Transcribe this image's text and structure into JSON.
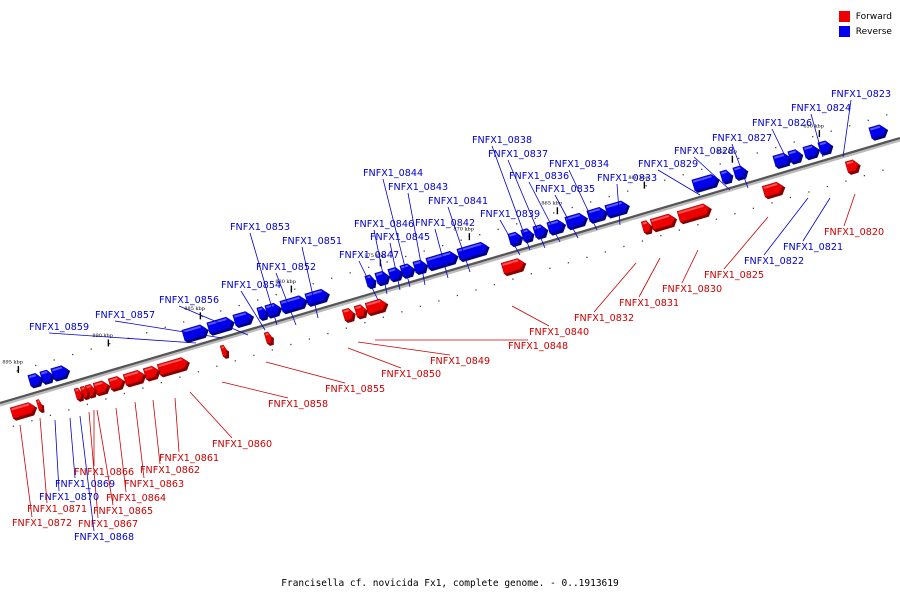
{
  "legend": [
    {
      "label": "Forward",
      "color": "#ee0000"
    },
    {
      "label": "Reverse",
      "color": "#0000ee"
    }
  ],
  "caption": "Francisella cf. novicida Fx1, complete genome. - 0..1913619",
  "colors": {
    "forward": "#ee0000",
    "reverse": "#0000ee",
    "forward_label": "#cc0000",
    "reverse_label": "#0000cc"
  },
  "axis_ticks": [
    "850 kbp",
    "855 kbp",
    "860 kbp",
    "865 kbp",
    "870 kbp",
    "875 kbp",
    "880 kbp",
    "885 kbp",
    "890 kbp",
    "895 kbp"
  ],
  "genes": [
    {
      "id": "FNFX1_0820",
      "strand": "forward"
    },
    {
      "id": "FNFX1_0821",
      "strand": "reverse"
    },
    {
      "id": "FNFX1_0822",
      "strand": "reverse"
    },
    {
      "id": "FNFX1_0823",
      "strand": "reverse"
    },
    {
      "id": "FNFX1_0824",
      "strand": "reverse"
    },
    {
      "id": "FNFX1_0825",
      "strand": "forward"
    },
    {
      "id": "FNFX1_0826",
      "strand": "reverse"
    },
    {
      "id": "FNFX1_0827",
      "strand": "reverse"
    },
    {
      "id": "FNFX1_0828",
      "strand": "reverse"
    },
    {
      "id": "FNFX1_0829",
      "strand": "reverse"
    },
    {
      "id": "FNFX1_0830",
      "strand": "forward"
    },
    {
      "id": "FNFX1_0831",
      "strand": "forward"
    },
    {
      "id": "FNFX1_0832",
      "strand": "forward"
    },
    {
      "id": "FNFX1_0833",
      "strand": "reverse"
    },
    {
      "id": "FNFX1_0834",
      "strand": "reverse"
    },
    {
      "id": "FNFX1_0835",
      "strand": "reverse"
    },
    {
      "id": "FNFX1_0836",
      "strand": "reverse"
    },
    {
      "id": "FNFX1_0837",
      "strand": "reverse"
    },
    {
      "id": "FNFX1_0838",
      "strand": "reverse"
    },
    {
      "id": "FNFX1_0839",
      "strand": "reverse"
    },
    {
      "id": "FNFX1_0840",
      "strand": "forward"
    },
    {
      "id": "FNFX1_0841",
      "strand": "reverse"
    },
    {
      "id": "FNFX1_0842",
      "strand": "reverse"
    },
    {
      "id": "FNFX1_0843",
      "strand": "reverse"
    },
    {
      "id": "FNFX1_0844",
      "strand": "reverse"
    },
    {
      "id": "FNFX1_0845",
      "strand": "reverse"
    },
    {
      "id": "FNFX1_0846",
      "strand": "reverse"
    },
    {
      "id": "FNFX1_0847",
      "strand": "reverse"
    },
    {
      "id": "FNFX1_0848",
      "strand": "forward"
    },
    {
      "id": "FNFX1_0849",
      "strand": "forward"
    },
    {
      "id": "FNFX1_0850",
      "strand": "forward"
    },
    {
      "id": "FNFX1_0851",
      "strand": "reverse"
    },
    {
      "id": "FNFX1_0852",
      "strand": "reverse"
    },
    {
      "id": "FNFX1_0853",
      "strand": "reverse"
    },
    {
      "id": "FNFX1_0854",
      "strand": "reverse"
    },
    {
      "id": "FNFX1_0855",
      "strand": "forward"
    },
    {
      "id": "FNFX1_0856",
      "strand": "reverse"
    },
    {
      "id": "FNFX1_0857",
      "strand": "reverse"
    },
    {
      "id": "FNFX1_0858",
      "strand": "forward"
    },
    {
      "id": "FNFX1_0859",
      "strand": "reverse"
    },
    {
      "id": "FNFX1_0860",
      "strand": "forward"
    },
    {
      "id": "FNFX1_0861",
      "strand": "forward"
    },
    {
      "id": "FNFX1_0862",
      "strand": "forward"
    },
    {
      "id": "FNFX1_0863",
      "strand": "forward"
    },
    {
      "id": "FNFX1_0864",
      "strand": "forward"
    },
    {
      "id": "FNFX1_0865",
      "strand": "forward"
    },
    {
      "id": "FNFX1_0866",
      "strand": "forward"
    },
    {
      "id": "FNFX1_0867",
      "strand": "forward"
    },
    {
      "id": "FNFX1_0868",
      "strand": "reverse"
    },
    {
      "id": "FNFX1_0869",
      "strand": "reverse"
    },
    {
      "id": "FNFX1_0870",
      "strand": "reverse"
    },
    {
      "id": "FNFX1_0871",
      "strand": "forward"
    },
    {
      "id": "FNFX1_0872",
      "strand": "forward"
    }
  ]
}
